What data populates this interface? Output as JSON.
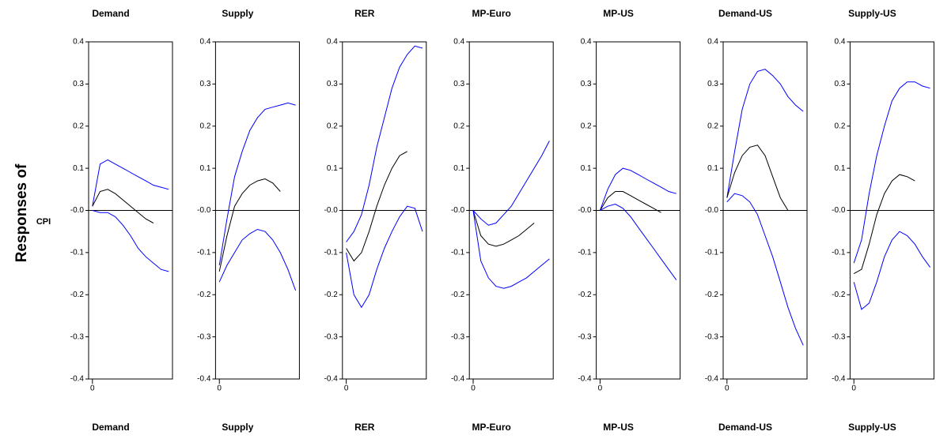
{
  "ylabel": "Responses of",
  "variable": "CPI",
  "chart_data": [
    {
      "type": "line",
      "title": "Demand",
      "xlabel": "Demand",
      "x": [
        0,
        2,
        4,
        6,
        8,
        10,
        12,
        14,
        16,
        18,
        20
      ],
      "xlim": [
        -1,
        21
      ],
      "xticks": [
        0
      ],
      "ylim": [
        -0.4,
        0.4
      ],
      "yticks": [
        -0.4,
        -0.3,
        -0.2,
        -0.1,
        {
          "value": 0,
          "label": "-0.0"
        },
        0.1,
        0.2,
        0.3,
        0.4
      ],
      "series": [
        {
          "color": "#0000ff",
          "values": [
            0.01,
            0.11,
            0.12,
            0.11,
            0.1,
            0.09,
            0.08,
            0.07,
            0.06,
            0.055,
            0.05
          ]
        },
        {
          "color": "#000000",
          "values": [
            0.01,
            0.045,
            0.05,
            0.04,
            0.025,
            0.01,
            -0.005,
            -0.02,
            -0.03,
            null,
            null
          ]
        },
        {
          "color": "#0000ff",
          "values": [
            0.0,
            -0.005,
            -0.005,
            -0.015,
            -0.035,
            -0.06,
            -0.09,
            -0.11,
            -0.125,
            -0.14,
            -0.145
          ]
        }
      ]
    },
    {
      "type": "line",
      "title": "Supply",
      "xlabel": "Supply",
      "x": [
        0,
        2,
        4,
        6,
        8,
        10,
        12,
        14,
        16,
        18,
        20
      ],
      "xlim": [
        -1,
        21
      ],
      "xticks": [
        0
      ],
      "ylim": [
        -0.4,
        0.4
      ],
      "yticks": [
        -0.4,
        -0.3,
        -0.2,
        -0.1,
        {
          "value": 0,
          "label": "-0.0"
        },
        0.1,
        0.2,
        0.3,
        0.4
      ],
      "series": [
        {
          "color": "#0000ff",
          "values": [
            -0.13,
            -0.02,
            0.08,
            0.14,
            0.19,
            0.22,
            0.24,
            0.245,
            0.25,
            0.255,
            0.25
          ]
        },
        {
          "color": "#000000",
          "values": [
            -0.145,
            -0.06,
            0.01,
            0.04,
            0.06,
            0.07,
            0.075,
            0.065,
            0.045,
            null,
            null
          ]
        },
        {
          "color": "#0000ff",
          "values": [
            -0.17,
            -0.13,
            -0.1,
            -0.07,
            -0.055,
            -0.045,
            -0.05,
            -0.07,
            -0.1,
            -0.14,
            -0.19
          ]
        }
      ]
    },
    {
      "type": "line",
      "title": "RER",
      "xlabel": "RER",
      "x": [
        0,
        2,
        4,
        6,
        8,
        10,
        12,
        14,
        16,
        18,
        20
      ],
      "xlim": [
        -1,
        21
      ],
      "xticks": [
        0
      ],
      "ylim": [
        -0.4,
        0.4
      ],
      "yticks": [
        -0.4,
        -0.3,
        -0.2,
        -0.1,
        {
          "value": 0,
          "label": "-0.0"
        },
        0.1,
        0.2,
        0.3,
        0.4
      ],
      "series": [
        {
          "color": "#0000ff",
          "values": [
            -0.075,
            -0.05,
            -0.01,
            0.06,
            0.15,
            0.22,
            0.29,
            0.34,
            0.37,
            0.39,
            0.385
          ]
        },
        {
          "color": "#000000",
          "values": [
            -0.09,
            -0.12,
            -0.1,
            -0.05,
            0.01,
            0.06,
            0.1,
            0.13,
            0.14,
            null,
            null
          ]
        },
        {
          "color": "#0000ff",
          "values": [
            -0.1,
            -0.2,
            -0.23,
            -0.2,
            -0.14,
            -0.09,
            -0.05,
            -0.015,
            0.01,
            0.005,
            -0.05
          ]
        }
      ]
    },
    {
      "type": "line",
      "title": "MP-Euro",
      "xlabel": "MP-Euro",
      "x": [
        0,
        2,
        4,
        6,
        8,
        10,
        12,
        14,
        16,
        18,
        20
      ],
      "xlim": [
        -1,
        21
      ],
      "xticks": [
        0
      ],
      "ylim": [
        -0.4,
        0.4
      ],
      "yticks": [
        -0.4,
        -0.3,
        -0.2,
        -0.1,
        {
          "value": 0,
          "label": "-0.0"
        },
        0.1,
        0.2,
        0.3,
        0.4
      ],
      "series": [
        {
          "color": "#0000ff",
          "values": [
            0,
            -0.02,
            -0.035,
            -0.03,
            -0.01,
            0.01,
            0.04,
            0.07,
            0.1,
            0.13,
            0.165
          ]
        },
        {
          "color": "#000000",
          "values": [
            0,
            -0.06,
            -0.08,
            -0.085,
            -0.08,
            -0.07,
            -0.06,
            -0.045,
            -0.03,
            null,
            null
          ]
        },
        {
          "color": "#0000ff",
          "values": [
            0,
            -0.12,
            -0.16,
            -0.18,
            -0.185,
            -0.18,
            -0.17,
            -0.16,
            -0.145,
            -0.13,
            -0.115
          ]
        }
      ]
    },
    {
      "type": "line",
      "title": "MP-US",
      "xlabel": "MP-US",
      "x": [
        0,
        2,
        4,
        6,
        8,
        10,
        12,
        14,
        16,
        18,
        20
      ],
      "xlim": [
        -1,
        21
      ],
      "xticks": [
        0
      ],
      "ylim": [
        -0.4,
        0.4
      ],
      "yticks": [
        -0.4,
        -0.3,
        -0.2,
        -0.1,
        {
          "value": 0,
          "label": "-0.0"
        },
        0.1,
        0.2,
        0.3,
        0.4
      ],
      "series": [
        {
          "color": "#0000ff",
          "values": [
            0,
            0.05,
            0.085,
            0.1,
            0.095,
            0.085,
            0.075,
            0.065,
            0.055,
            0.045,
            0.04
          ]
        },
        {
          "color": "#000000",
          "values": [
            0,
            0.03,
            0.045,
            0.045,
            0.035,
            0.025,
            0.015,
            0.005,
            -0.005,
            null,
            null
          ]
        },
        {
          "color": "#0000ff",
          "values": [
            0,
            0.01,
            0.015,
            0.005,
            -0.015,
            -0.04,
            -0.065,
            -0.09,
            -0.115,
            -0.14,
            -0.165
          ]
        }
      ]
    },
    {
      "type": "line",
      "title": "Demand-US",
      "xlabel": "Demand-US",
      "x": [
        0,
        2,
        4,
        6,
        8,
        10,
        12,
        14,
        16,
        18,
        20
      ],
      "xlim": [
        -1,
        21
      ],
      "xticks": [
        0
      ],
      "ylim": [
        -0.4,
        0.4
      ],
      "yticks": [
        -0.4,
        -0.3,
        -0.2,
        -0.1,
        {
          "value": 0,
          "label": "-0.0"
        },
        0.1,
        0.2,
        0.3,
        0.4
      ],
      "series": [
        {
          "color": "#0000ff",
          "values": [
            0.03,
            0.14,
            0.24,
            0.3,
            0.33,
            0.335,
            0.32,
            0.3,
            0.27,
            0.25,
            0.235
          ]
        },
        {
          "color": "#000000",
          "values": [
            0.03,
            0.09,
            0.13,
            0.15,
            0.155,
            0.13,
            0.08,
            0.03,
            0.0,
            null,
            null
          ]
        },
        {
          "color": "#0000ff",
          "values": [
            0.02,
            0.04,
            0.035,
            0.02,
            -0.01,
            -0.06,
            -0.11,
            -0.17,
            -0.23,
            -0.28,
            -0.32
          ]
        }
      ]
    },
    {
      "type": "line",
      "title": "Supply-US",
      "xlabel": "Supply-US",
      "x": [
        0,
        2,
        4,
        6,
        8,
        10,
        12,
        14,
        16,
        18,
        20
      ],
      "xlim": [
        -1,
        21
      ],
      "xticks": [
        0
      ],
      "ylim": [
        -0.4,
        0.4
      ],
      "yticks": [
        -0.4,
        -0.3,
        -0.2,
        -0.1,
        {
          "value": 0,
          "label": "-0.0"
        },
        0.1,
        0.2,
        0.3,
        0.4
      ],
      "series": [
        {
          "color": "#0000ff",
          "values": [
            -0.125,
            -0.07,
            0.04,
            0.13,
            0.2,
            0.26,
            0.29,
            0.305,
            0.305,
            0.295,
            0.29
          ]
        },
        {
          "color": "#000000",
          "values": [
            -0.15,
            -0.14,
            -0.08,
            -0.01,
            0.04,
            0.07,
            0.085,
            0.08,
            0.07,
            null,
            null
          ]
        },
        {
          "color": "#0000ff",
          "values": [
            -0.17,
            -0.235,
            -0.22,
            -0.17,
            -0.11,
            -0.07,
            -0.05,
            -0.06,
            -0.08,
            -0.11,
            -0.135
          ]
        }
      ]
    }
  ]
}
